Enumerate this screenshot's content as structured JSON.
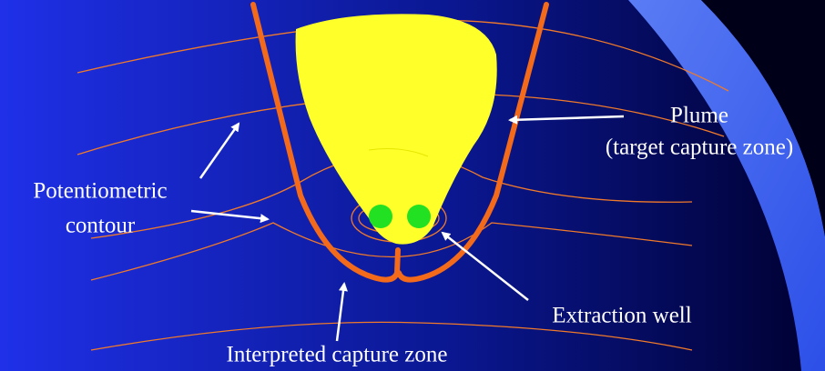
{
  "labels": {
    "plume": [
      "Plume",
      "(target capture zone)"
    ],
    "potentiometric": [
      "Potentiometric",
      "contour"
    ],
    "extraction_well": "Extraction well",
    "capture_zone": "Interpreted capture zone"
  }
}
